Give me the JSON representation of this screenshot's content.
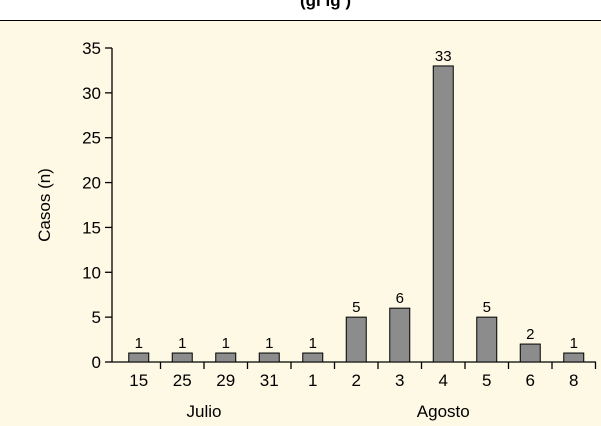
{
  "header": {
    "fragment_text": "(gi   lg    )"
  },
  "chart_data": {
    "type": "bar",
    "categories": [
      "15",
      "25",
      "29",
      "31",
      "1",
      "2",
      "3",
      "4",
      "5",
      "6",
      "8"
    ],
    "values": [
      1,
      1,
      1,
      1,
      1,
      5,
      6,
      33,
      5,
      2,
      1
    ],
    "data_labels": [
      "1",
      "1",
      "1",
      "1",
      "1",
      "5",
      "6",
      "33",
      "5",
      "2",
      "1"
    ],
    "groups": [
      {
        "label": "Julio",
        "start": 0,
        "end": 3
      },
      {
        "label": "Agosto",
        "start": 4,
        "end": 10
      }
    ],
    "xlabel": "",
    "ylabel": "Casos (n)",
    "ylim": [
      0,
      35
    ],
    "yticks": [
      0,
      5,
      10,
      15,
      20,
      25,
      30,
      35
    ],
    "grid": false,
    "colors": {
      "bar_fill": "#8c8c8c",
      "bar_stroke": "#000000",
      "background": "#fdf9e4"
    }
  }
}
